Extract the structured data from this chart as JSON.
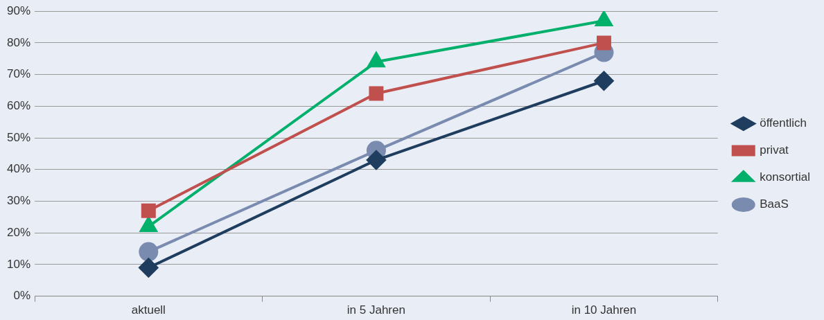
{
  "chart_data": {
    "type": "line",
    "categories": [
      "aktuell",
      "in 5 Jahren",
      "in 10 Jahren"
    ],
    "series": [
      {
        "name": "öffentlich",
        "color": "#1f3d5e",
        "marker": "diamond",
        "values": [
          9,
          43,
          68
        ]
      },
      {
        "name": "privat",
        "color": "#c0504d",
        "marker": "square",
        "values": [
          27,
          64,
          80
        ]
      },
      {
        "name": "konsortial",
        "color": "#00b06b",
        "marker": "triangle",
        "values": [
          22,
          74,
          87
        ]
      },
      {
        "name": "BaaS",
        "color": "#7a8bb0",
        "marker": "circle",
        "values": [
          14,
          46,
          77
        ]
      }
    ],
    "ylim": [
      0,
      90
    ],
    "yticks": [
      {
        "value": 0,
        "label": "0%"
      },
      {
        "value": 10,
        "label": "10%"
      },
      {
        "value": 20,
        "label": "20%"
      },
      {
        "value": 30,
        "label": "30%"
      },
      {
        "value": 40,
        "label": "40%"
      },
      {
        "value": 50,
        "label": "50%"
      },
      {
        "value": 60,
        "label": "60%"
      },
      {
        "value": 70,
        "label": "70%"
      },
      {
        "value": 80,
        "label": "80%"
      },
      {
        "value": 90,
        "label": "90%"
      }
    ],
    "grid": "y",
    "legend": "right",
    "line_style": "solid"
  }
}
